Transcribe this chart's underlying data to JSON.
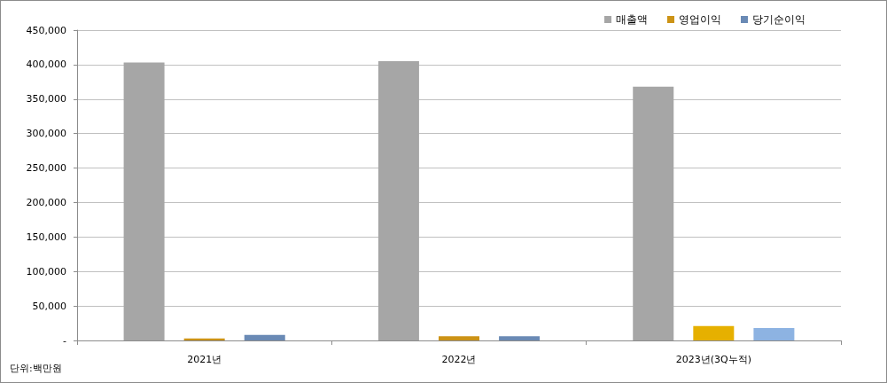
{
  "chart_data": {
    "type": "bar",
    "categories": [
      "2021년",
      "2022년",
      "2023년(3Q누적)"
    ],
    "series": [
      {
        "name": "매출액",
        "color": "#a6a6a6",
        "colors": [
          "#a6a6a6",
          "#a6a6a6",
          "#a6a6a6"
        ],
        "values": [
          403000,
          405000,
          368000
        ]
      },
      {
        "name": "영업이익",
        "color": "#cc9316",
        "colors": [
          "#cc9316",
          "#cc9316",
          "#e6b000"
        ],
        "values": [
          3000,
          6000,
          21000
        ]
      },
      {
        "name": "당기순이익",
        "color": "#6a8ab5",
        "colors": [
          "#6a8ab5",
          "#6a8ab5",
          "#8db3e2"
        ],
        "values": [
          8000,
          6000,
          18000
        ]
      }
    ],
    "ylim": [
      0,
      450000
    ],
    "yticks": [
      {
        "value": 0,
        "label": "-"
      },
      {
        "value": 50000,
        "label": "50,000"
      },
      {
        "value": 100000,
        "label": "100,000"
      },
      {
        "value": 150000,
        "label": "150,000"
      },
      {
        "value": 200000,
        "label": "200,000"
      },
      {
        "value": 250000,
        "label": "250,000"
      },
      {
        "value": 300000,
        "label": "300,000"
      },
      {
        "value": 350000,
        "label": "350,000"
      },
      {
        "value": 400000,
        "label": "400,000"
      },
      {
        "value": 450000,
        "label": "450,000"
      }
    ],
    "grid": "y",
    "legend": "top right",
    "annotations": [
      "단위:백만원"
    ]
  }
}
